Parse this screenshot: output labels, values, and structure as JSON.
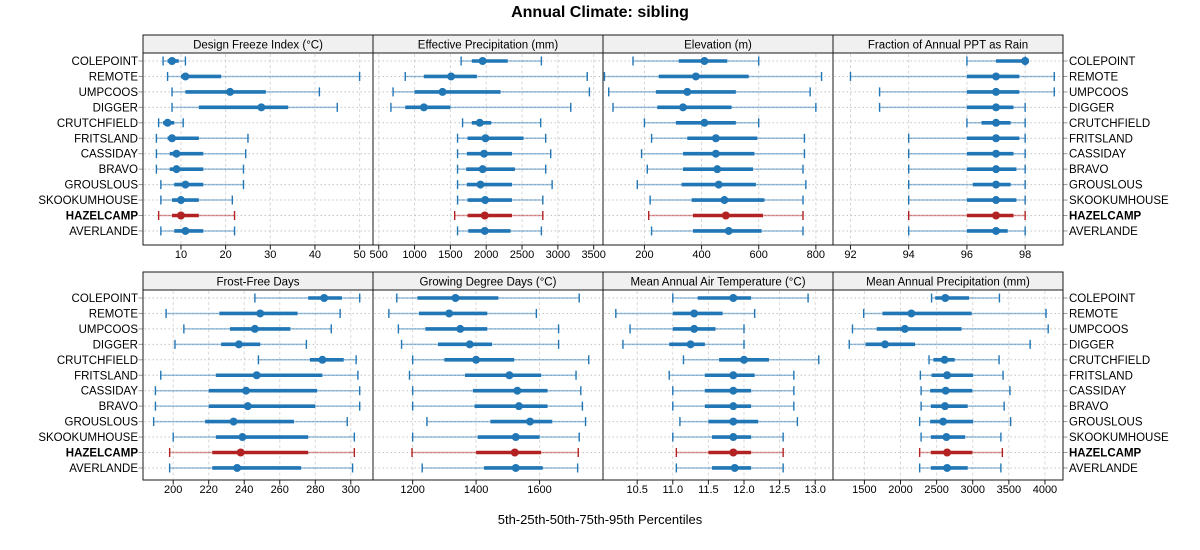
{
  "title": "Annual Climate: sibling",
  "caption": "5th-25th-50th-75th-95th Percentiles",
  "percentile_labels": [
    "5th",
    "25th",
    "50th",
    "75th",
    "95th"
  ],
  "highlight_station": "HAZELCAMP",
  "colors": {
    "normal": "#2176b5",
    "highlight": "#b22222",
    "strip_bg": "#f0f0f0",
    "panel_border": "#1a1a1a",
    "grid": "#d8d8d8",
    "row_line": "#c4c4c4",
    "text": "#000000"
  },
  "stations": [
    "COLEPOINT",
    "REMOTE",
    "UMPCOOS",
    "DIGGER",
    "CRUTCHFIELD",
    "FRITSLAND",
    "CASSIDAY",
    "BRAVO",
    "GROUSLOUS",
    "SKOOKUMHOUSE",
    "HAZELCAMP",
    "AVERLANDE"
  ],
  "chart_data": {
    "type": "dotplot-interval",
    "layout": {
      "rows": 2,
      "cols": 4
    },
    "panels": [
      {
        "title": "Design Freeze Index (°C)",
        "tick_values": [
          10,
          20,
          30,
          40,
          50
        ],
        "tick_labels": [
          "10",
          "20",
          "30",
          "40",
          "50"
        ],
        "xlim": [
          1.5,
          53
        ],
        "values": [
          [
            6,
            7,
            8,
            9.5,
            11
          ],
          [
            7,
            10,
            11,
            19,
            50
          ],
          [
            8,
            11,
            21,
            29,
            41
          ],
          [
            8,
            14,
            28,
            34,
            45
          ],
          [
            5,
            6,
            7,
            8.5,
            10.5
          ],
          [
            4.5,
            7,
            8,
            14,
            25
          ],
          [
            4.5,
            7.5,
            9,
            15,
            24.5
          ],
          [
            4.5,
            7.5,
            9,
            15,
            24
          ],
          [
            5.5,
            8.5,
            11,
            15,
            24
          ],
          [
            5.5,
            8,
            10,
            14,
            21.5
          ],
          [
            5,
            8,
            10,
            14,
            22
          ],
          [
            5.5,
            8.5,
            11,
            15,
            22
          ]
        ]
      },
      {
        "title": "Effective Precipitation (mm)",
        "tick_values": [
          500,
          1000,
          1500,
          2000,
          2500,
          3000,
          3500
        ],
        "tick_labels": [
          "500",
          "1000",
          "1500",
          "2000",
          "2500",
          "3000",
          "3500"
        ],
        "xlim": [
          420,
          3630
        ],
        "values": [
          [
            1650,
            1800,
            1950,
            2300,
            2770
          ],
          [
            870,
            1130,
            1510,
            1870,
            3410
          ],
          [
            700,
            1000,
            1390,
            2200,
            3440
          ],
          [
            670,
            870,
            1130,
            1500,
            3180
          ],
          [
            1670,
            1800,
            1910,
            2070,
            2760
          ],
          [
            1600,
            1740,
            1990,
            2520,
            2830
          ],
          [
            1600,
            1730,
            1970,
            2360,
            2900
          ],
          [
            1600,
            1720,
            1950,
            2400,
            2830
          ],
          [
            1600,
            1730,
            1920,
            2360,
            2920
          ],
          [
            1600,
            1740,
            1985,
            2360,
            2790
          ],
          [
            1560,
            1740,
            1980,
            2360,
            2790
          ],
          [
            1600,
            1750,
            1980,
            2340,
            2770
          ]
        ]
      },
      {
        "title": "Elevation (m)",
        "tick_values": [
          200,
          400,
          600,
          800
        ],
        "tick_labels": [
          "200",
          "400",
          "600",
          "800"
        ],
        "xlim": [
          55,
          860
        ],
        "values": [
          [
            160,
            320,
            410,
            490,
            600
          ],
          [
            60,
            250,
            380,
            565,
            820
          ],
          [
            75,
            240,
            350,
            520,
            780
          ],
          [
            90,
            245,
            335,
            505,
            800
          ],
          [
            200,
            310,
            410,
            520,
            600
          ],
          [
            225,
            350,
            450,
            595,
            760
          ],
          [
            190,
            335,
            450,
            585,
            760
          ],
          [
            210,
            335,
            455,
            580,
            755
          ],
          [
            175,
            330,
            460,
            590,
            765
          ],
          [
            220,
            365,
            480,
            620,
            755
          ],
          [
            215,
            370,
            485,
            615,
            755
          ],
          [
            225,
            370,
            495,
            610,
            755
          ]
        ]
      },
      {
        "title": "Fraction of Annual PPT as Rain",
        "tick_values": [
          92,
          94,
          96,
          98
        ],
        "tick_labels": [
          "92",
          "94",
          "96",
          "98"
        ],
        "xlim": [
          91.4,
          99.3
        ],
        "values": [
          [
            96,
            97,
            98,
            98,
            98
          ],
          [
            92,
            96,
            97,
            97.8,
            99
          ],
          [
            93,
            96,
            97,
            97.8,
            99
          ],
          [
            93,
            96,
            97,
            97.6,
            98
          ],
          [
            96,
            96.5,
            97,
            97.5,
            98
          ],
          [
            94,
            96,
            97,
            97.8,
            98
          ],
          [
            94,
            96,
            97,
            97.6,
            98
          ],
          [
            94,
            96,
            97,
            97.7,
            98
          ],
          [
            94,
            96.2,
            97,
            97.5,
            98
          ],
          [
            94,
            96,
            97,
            97.7,
            98
          ],
          [
            94,
            96,
            97,
            97.6,
            98
          ],
          [
            94,
            96,
            97,
            97.4,
            98
          ]
        ]
      },
      {
        "title": "Frost-Free Days",
        "tick_values": [
          200,
          220,
          240,
          260,
          280,
          300
        ],
        "tick_labels": [
          "200",
          "220",
          "240",
          "260",
          "280",
          "300"
        ],
        "xlim": [
          183,
          312.5
        ],
        "values": [
          [
            246,
            276,
            285,
            295,
            305
          ],
          [
            196,
            226,
            249,
            270,
            294
          ],
          [
            206,
            232,
            246,
            266,
            289
          ],
          [
            201,
            227,
            237,
            249,
            275
          ],
          [
            248,
            277,
            284,
            296,
            303
          ],
          [
            193,
            224,
            247,
            284,
            304
          ],
          [
            190,
            220,
            241,
            281,
            305
          ],
          [
            190,
            220,
            242,
            280,
            305
          ],
          [
            189,
            218,
            234,
            268,
            298
          ],
          [
            200,
            224,
            239,
            276,
            302
          ],
          [
            198,
            222,
            238,
            276,
            302
          ],
          [
            198,
            222,
            236,
            272,
            301
          ]
        ]
      },
      {
        "title": "Growing Degree Days (°C)",
        "tick_values": [
          1200,
          1400,
          1600
        ],
        "tick_labels": [
          "1200",
          "1400",
          "1600"
        ],
        "xlim": [
          1075,
          1800
        ],
        "values": [
          [
            1150,
            1215,
            1335,
            1470,
            1725
          ],
          [
            1125,
            1220,
            1315,
            1435,
            1590
          ],
          [
            1155,
            1240,
            1350,
            1435,
            1660
          ],
          [
            1165,
            1280,
            1380,
            1450,
            1660
          ],
          [
            1200,
            1300,
            1400,
            1520,
            1755
          ],
          [
            1190,
            1365,
            1505,
            1605,
            1715
          ],
          [
            1200,
            1390,
            1530,
            1625,
            1730
          ],
          [
            1200,
            1395,
            1535,
            1625,
            1735
          ],
          [
            1245,
            1445,
            1570,
            1640,
            1745
          ],
          [
            1200,
            1405,
            1525,
            1600,
            1725
          ],
          [
            1198,
            1400,
            1522,
            1605,
            1722
          ],
          [
            1230,
            1425,
            1525,
            1610,
            1720
          ]
        ]
      },
      {
        "title": "Mean Annual Air Temperature (°C)",
        "tick_values": [
          10.5,
          11.0,
          11.5,
          12.0,
          12.5,
          13.0
        ],
        "tick_labels": [
          "10.5",
          "11.0",
          "11.5",
          "12.0",
          "12.5",
          "13.0"
        ],
        "xlim": [
          10.02,
          13.25
        ],
        "values": [
          [
            11.0,
            11.35,
            11.85,
            12.1,
            12.9
          ],
          [
            10.2,
            11.0,
            11.3,
            11.7,
            12.15
          ],
          [
            10.4,
            11.0,
            11.3,
            11.6,
            12.0
          ],
          [
            10.3,
            10.95,
            11.25,
            11.45,
            12.0
          ],
          [
            11.15,
            11.65,
            12.0,
            12.35,
            13.05
          ],
          [
            10.95,
            11.45,
            11.85,
            12.15,
            12.7
          ],
          [
            11.0,
            11.45,
            11.85,
            12.1,
            12.7
          ],
          [
            11.0,
            11.45,
            11.85,
            12.1,
            12.7
          ],
          [
            11.1,
            11.5,
            11.85,
            12.2,
            12.75
          ],
          [
            11.0,
            11.55,
            11.85,
            12.1,
            12.55
          ],
          [
            11.05,
            11.5,
            11.85,
            12.1,
            12.55
          ],
          [
            11.05,
            11.55,
            11.87,
            12.1,
            12.55
          ]
        ]
      },
      {
        "title": "Mean Annual Precipitation (mm)",
        "tick_values": [
          1500,
          2000,
          2500,
          3000,
          3500,
          4000
        ],
        "tick_labels": [
          "1500",
          "2000",
          "2500",
          "3000",
          "3500",
          "4000"
        ],
        "xlim": [
          1065,
          4250
        ],
        "values": [
          [
            2430,
            2480,
            2620,
            2950,
            3370
          ],
          [
            1490,
            1750,
            2150,
            2985,
            4015
          ],
          [
            1335,
            1670,
            2060,
            2845,
            4045
          ],
          [
            1290,
            1515,
            1785,
            2200,
            3795
          ],
          [
            2395,
            2455,
            2610,
            2750,
            3365
          ],
          [
            2275,
            2430,
            2645,
            3005,
            3420
          ],
          [
            2285,
            2410,
            2625,
            2995,
            3515
          ],
          [
            2285,
            2420,
            2615,
            2930,
            3435
          ],
          [
            2265,
            2410,
            2590,
            3005,
            3525
          ],
          [
            2285,
            2420,
            2635,
            2895,
            3390
          ],
          [
            2265,
            2420,
            2645,
            2995,
            3410
          ],
          [
            2265,
            2420,
            2645,
            2930,
            3390
          ]
        ]
      }
    ]
  }
}
